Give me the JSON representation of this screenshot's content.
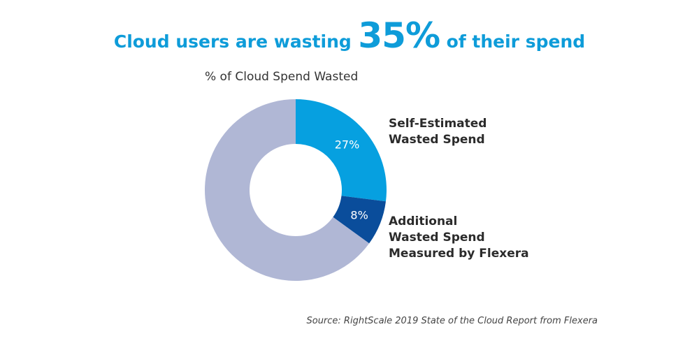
{
  "headline": {
    "before": "Cloud users are wasting",
    "highlight": "35%",
    "after": "of their spend"
  },
  "subtitle": "% of Cloud Spend Wasted",
  "source": "Source: RightScale 2019 State of the Cloud Report from Flexera",
  "colors": {
    "accent": "#0e9cd9",
    "self_estimated": "#06a0e0",
    "additional": "#0a4d9b",
    "remaining": "#b0b7d5"
  },
  "legend": {
    "self_estimated": [
      "Self-Estimated",
      "Wasted Spend"
    ],
    "additional": [
      "Additional",
      "Wasted Spend",
      "Measured by Flexera"
    ]
  },
  "chart_data": {
    "type": "pie",
    "title": "% of Cloud Spend Wasted",
    "donut": true,
    "start_angle_deg": 0,
    "direction": "clockwise",
    "slices": [
      {
        "name": "Self-Estimated Wasted Spend",
        "value": 27,
        "label": "27%",
        "color": "#06a0e0"
      },
      {
        "name": "Additional Wasted Spend Measured by Flexera",
        "value": 8,
        "label": "8%",
        "color": "#0a4d9b"
      },
      {
        "value": 65,
        "label": "",
        "color": "#b0b7d5"
      }
    ]
  }
}
